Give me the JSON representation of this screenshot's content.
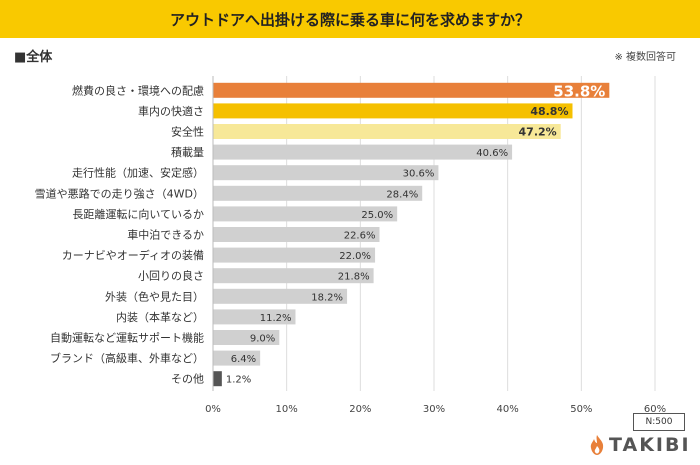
{
  "title": "アウトドアへ出掛ける際に乗る車に何を求めますか？",
  "section_label": "■全体",
  "note": "※ 複数回答可",
  "sample_size": "N:500",
  "brand": "TAKIBI",
  "icons": {
    "brand_logo": "flame-icon"
  },
  "colors": {
    "title_bg": "#f9c900",
    "rank1": "#e8803a",
    "rank2": "#f5c000",
    "rank3": "#f7e898",
    "default": "#d0d0d0",
    "last": "#555555",
    "brand_flame": "#e8803a"
  },
  "chart_data": {
    "type": "bar",
    "orientation": "horizontal",
    "categories": [
      "燃費の良さ・環境への配慮",
      "車内の快適さ",
      "安全性",
      "積載量",
      "走行性能（加速、安定感）",
      "雪道や悪路での走り強さ（4WD）",
      "長距離運転に向いているか",
      "車中泊できるか",
      "カーナビやオーディオの装備",
      "小回りの良さ",
      "外装（色や見た目）",
      "内装（本革など）",
      "自動運転など運転サポート機能",
      "ブランド（高級車、外車など）",
      "その他"
    ],
    "values": [
      53.8,
      48.8,
      47.2,
      40.6,
      30.6,
      28.4,
      25.0,
      22.6,
      22.0,
      21.8,
      18.2,
      11.2,
      9.0,
      6.4,
      1.2
    ],
    "value_labels": [
      "53.8%",
      "48.8%",
      "47.2%",
      "40.6%",
      "30.6%",
      "28.4%",
      "25.0%",
      "22.6%",
      "22.0%",
      "21.8%",
      "18.2%",
      "11.2%",
      "9.0%",
      "6.4%",
      "1.2%"
    ],
    "xlim": [
      0,
      60
    ],
    "xticks": [
      "0%",
      "10%",
      "20%",
      "30%",
      "40%",
      "50%",
      "60%"
    ],
    "grid": true,
    "legend": "none"
  }
}
